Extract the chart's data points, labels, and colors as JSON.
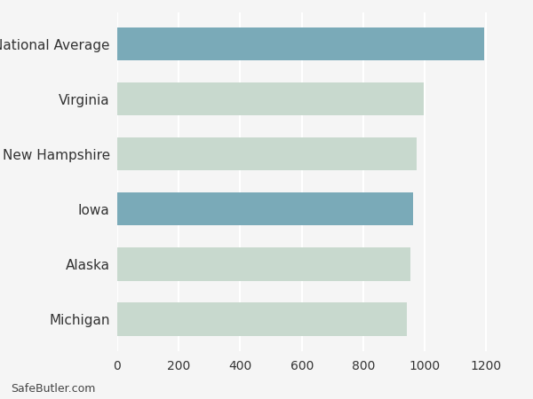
{
  "categories": [
    "Michigan",
    "Alaska",
    "Iowa",
    "New Hampshire",
    "Virginia",
    "National Average"
  ],
  "values": [
    942,
    954,
    961,
    973,
    997,
    1192
  ],
  "bar_colors": [
    "#c8d9ce",
    "#c8d9ce",
    "#7AAAB8",
    "#c8d9ce",
    "#c8d9ce",
    "#7AAAB8"
  ],
  "xlim": [
    0,
    1300
  ],
  "xticks": [
    0,
    200,
    400,
    600,
    800,
    1000,
    1200
  ],
  "background_color": "#f5f5f5",
  "plot_bg_color": "#f5f5f5",
  "grid_color": "#ffffff",
  "bar_height": 0.6,
  "watermark": "SafeButler.com",
  "tick_fontsize": 10,
  "label_fontsize": 11,
  "label_color": "#333333"
}
